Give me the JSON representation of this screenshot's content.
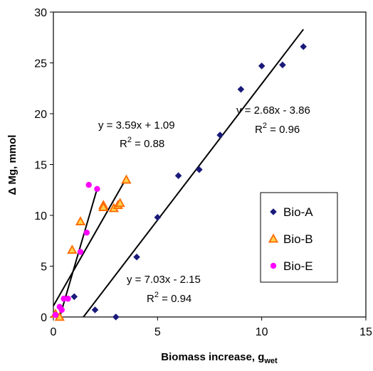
{
  "chart_data": {
    "type": "scatter",
    "xlabel": "Biomass increase, g",
    "xlabel_sub": "wet",
    "ylabel": "Δ Mg, mmol",
    "xlim": [
      0,
      15
    ],
    "ylim": [
      0,
      30
    ],
    "xticks": [
      "0",
      "5",
      "10",
      "15"
    ],
    "yticks": [
      "0",
      "5",
      "10",
      "15",
      "20",
      "25",
      "30"
    ],
    "legend_position": "center-right",
    "series": [
      {
        "name": "Bio-A",
        "marker": "diamond",
        "color": "#1a1a7a",
        "points": [
          [
            1.0,
            2.0
          ],
          [
            2.0,
            0.7
          ],
          [
            3.0,
            0.0
          ],
          [
            4.0,
            5.9
          ],
          [
            5.0,
            9.8
          ],
          [
            6.0,
            13.9
          ],
          [
            7.0,
            14.5
          ],
          [
            8.0,
            17.9
          ],
          [
            9.0,
            22.4
          ],
          [
            10.0,
            24.7
          ],
          [
            11.0,
            24.8
          ],
          [
            12.0,
            26.6
          ]
        ]
      },
      {
        "name": "Bio-B",
        "marker": "triangle",
        "color": "#ff6a00",
        "points": [
          [
            0.1,
            0.3
          ],
          [
            0.3,
            0.0
          ],
          [
            0.9,
            6.6
          ],
          [
            1.3,
            9.4
          ],
          [
            2.4,
            11.0
          ],
          [
            2.4,
            10.8
          ],
          [
            2.9,
            10.7
          ],
          [
            3.1,
            11.0
          ],
          [
            3.2,
            11.2
          ],
          [
            3.5,
            13.5
          ]
        ]
      },
      {
        "name": "Bio-E",
        "marker": "circle",
        "color": "#ff00ff",
        "points": [
          [
            0.1,
            0.2
          ],
          [
            0.3,
            1.0
          ],
          [
            0.4,
            0.7
          ],
          [
            0.5,
            1.8
          ],
          [
            0.7,
            1.8
          ],
          [
            1.3,
            6.4
          ],
          [
            1.6,
            8.3
          ],
          [
            1.7,
            13.0
          ],
          [
            2.1,
            12.6
          ]
        ]
      }
    ],
    "trendlines": [
      {
        "series": "Bio-A",
        "x_range": [
          1.44,
          12.0
        ],
        "slope": 2.68,
        "intercept": -3.86,
        "equation": "y = 2.68x - 3.86",
        "r2_label": "R",
        "r2_value": "2",
        "r2_text": " = 0.96"
      },
      {
        "series": "Bio-B",
        "x_range": [
          0.0,
          3.5
        ],
        "slope": 3.59,
        "intercept": 1.09,
        "equation": "y = 3.59x + 1.09",
        "r2_label": "R",
        "r2_value": "2",
        "r2_text": " = 0.88"
      },
      {
        "series": "Bio-E",
        "x_range": [
          0.31,
          2.1
        ],
        "slope": 7.03,
        "intercept": -2.15,
        "equation": "y = 7.03x - 2.15",
        "r2_label": "R",
        "r2_value": "2",
        "r2_text": " = 0.94"
      }
    ]
  }
}
